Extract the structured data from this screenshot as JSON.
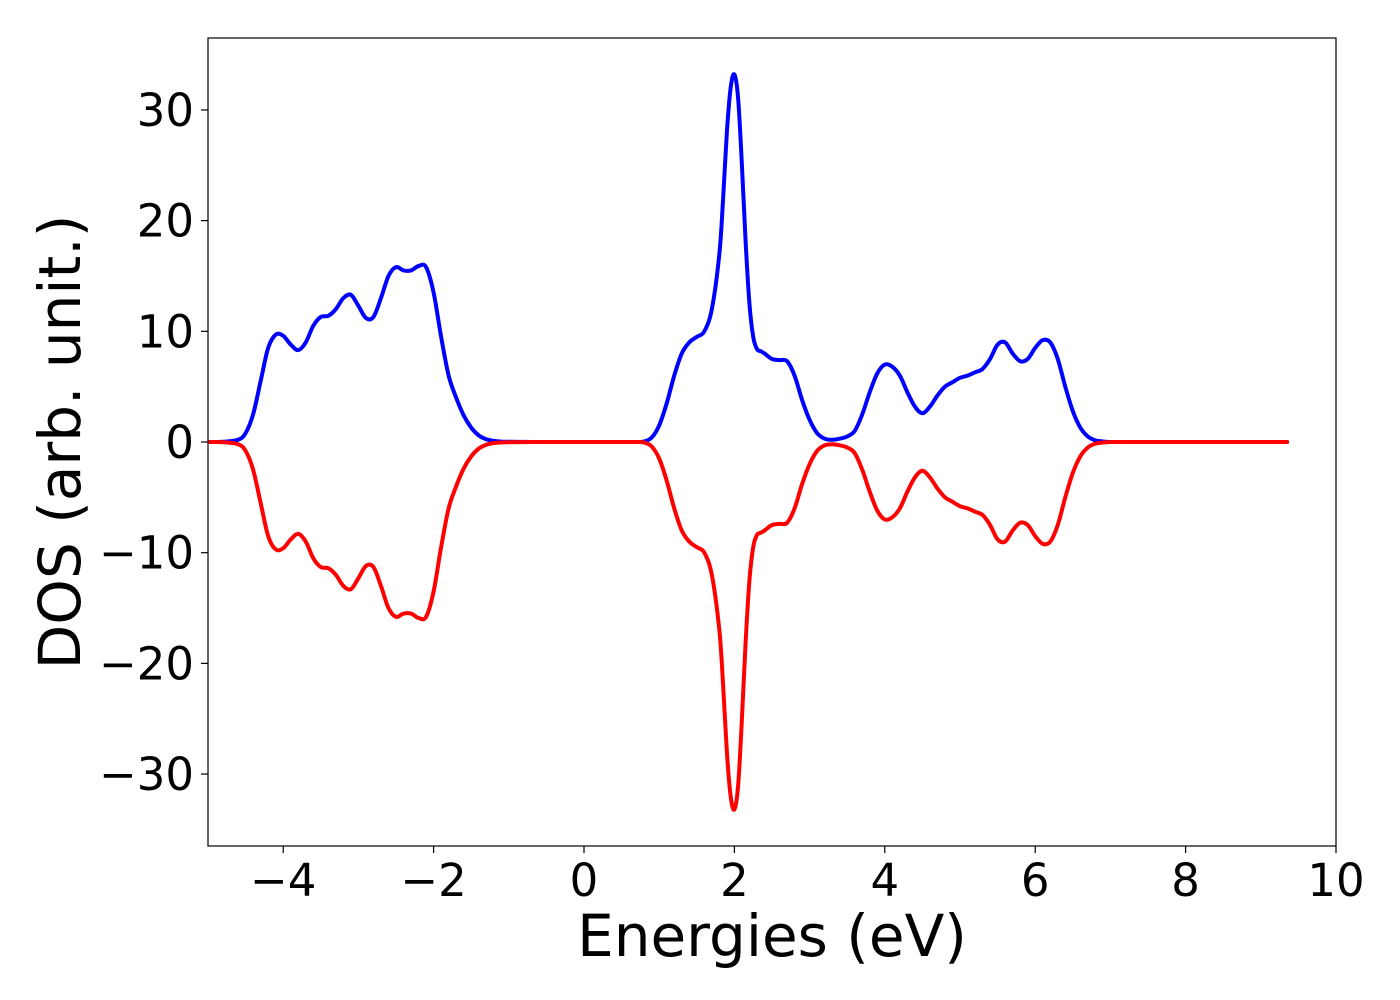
{
  "chart_data": {
    "type": "line",
    "title": "",
    "xlabel": "Energies (eV)",
    "ylabel": "DOS (arb. unit.)",
    "xlim": [
      -5.0,
      10.0
    ],
    "ylim": [
      -36.5,
      36.5
    ],
    "grid": false,
    "legend": "none",
    "x_ticks": [
      {
        "value": -4,
        "label": "−4"
      },
      {
        "value": -2,
        "label": "−2"
      },
      {
        "value": 0,
        "label": "0"
      },
      {
        "value": 2,
        "label": "2"
      },
      {
        "value": 4,
        "label": "4"
      },
      {
        "value": 6,
        "label": "6"
      },
      {
        "value": 8,
        "label": "8"
      },
      {
        "value": 10,
        "label": "10"
      }
    ],
    "y_ticks": [
      {
        "value": 30,
        "label": "30"
      },
      {
        "value": 20,
        "label": "20"
      },
      {
        "value": 10,
        "label": "10"
      },
      {
        "value": 0,
        "label": "0"
      },
      {
        "value": -10,
        "label": "−10"
      },
      {
        "value": -20,
        "label": "−20"
      },
      {
        "value": -30,
        "label": "−30"
      }
    ],
    "series": [
      {
        "color": "#0000ff",
        "x": [
          -5.0,
          -4.8,
          -4.6,
          -4.5,
          -4.4,
          -4.3,
          -4.2,
          -4.1,
          -4.0,
          -3.9,
          -3.8,
          -3.7,
          -3.6,
          -3.5,
          -3.4,
          -3.3,
          -3.2,
          -3.1,
          -3.0,
          -2.9,
          -2.8,
          -2.7,
          -2.6,
          -2.5,
          -2.4,
          -2.3,
          -2.2,
          -2.1,
          -2.0,
          -1.9,
          -1.8,
          -1.7,
          -1.6,
          -1.5,
          -1.4,
          -1.3,
          -1.2,
          -1.1,
          -1.0,
          -0.8,
          -0.6,
          -0.4,
          0.0,
          0.4,
          0.7,
          0.8,
          0.9,
          1.0,
          1.1,
          1.2,
          1.3,
          1.4,
          1.5,
          1.6,
          1.7,
          1.8,
          1.85,
          1.9,
          1.95,
          2.0,
          2.05,
          2.1,
          2.15,
          2.2,
          2.25,
          2.3,
          2.35,
          2.4,
          2.5,
          2.6,
          2.7,
          2.8,
          2.9,
          3.0,
          3.1,
          3.2,
          3.3,
          3.4,
          3.5,
          3.6,
          3.7,
          3.8,
          3.9,
          4.0,
          4.1,
          4.2,
          4.3,
          4.4,
          4.5,
          4.6,
          4.7,
          4.8,
          4.9,
          5.0,
          5.1,
          5.2,
          5.3,
          5.4,
          5.5,
          5.6,
          5.7,
          5.8,
          5.9,
          6.0,
          6.1,
          6.2,
          6.3,
          6.4,
          6.5,
          6.6,
          6.7,
          6.8,
          6.9,
          7.0,
          7.1,
          7.2,
          7.4,
          8.0,
          9.0,
          9.35
        ],
        "y": [
          0.0,
          0.02,
          0.2,
          0.8,
          2.5,
          5.5,
          8.5,
          9.7,
          9.6,
          8.8,
          8.3,
          9.0,
          10.5,
          11.3,
          11.4,
          12.0,
          13.0,
          13.3,
          12.3,
          11.2,
          11.3,
          13.0,
          15.0,
          15.8,
          15.5,
          15.5,
          15.9,
          15.8,
          13.5,
          9.5,
          6.0,
          4.0,
          2.4,
          1.3,
          0.6,
          0.25,
          0.1,
          0.04,
          0.02,
          0.01,
          0.0,
          0.0,
          0.0,
          0.0,
          0.0,
          0.05,
          0.4,
          1.5,
          3.5,
          6.0,
          8.0,
          9.0,
          9.5,
          10.0,
          12.0,
          17.0,
          22.0,
          28.0,
          32.0,
          33.2,
          31.0,
          25.0,
          18.0,
          12.5,
          9.5,
          8.4,
          8.2,
          8.0,
          7.5,
          7.4,
          7.3,
          6.0,
          3.8,
          2.0,
          0.8,
          0.3,
          0.2,
          0.3,
          0.5,
          1.0,
          2.5,
          4.5,
          6.2,
          7.0,
          6.8,
          6.0,
          4.5,
          3.2,
          2.6,
          3.2,
          4.2,
          5.0,
          5.4,
          5.8,
          6.0,
          6.3,
          6.6,
          7.5,
          8.8,
          9.0,
          8.0,
          7.3,
          7.5,
          8.5,
          9.2,
          9.0,
          7.5,
          5.0,
          2.8,
          1.3,
          0.5,
          0.15,
          0.05,
          0.0,
          0.0,
          0.0,
          0.0,
          0.0,
          0.0,
          0.0
        ]
      },
      {
        "color": "#ff0000",
        "x": [
          -5.0,
          -4.8,
          -4.6,
          -4.5,
          -4.4,
          -4.3,
          -4.2,
          -4.1,
          -4.0,
          -3.9,
          -3.8,
          -3.7,
          -3.6,
          -3.5,
          -3.4,
          -3.3,
          -3.2,
          -3.1,
          -3.0,
          -2.9,
          -2.8,
          -2.7,
          -2.6,
          -2.5,
          -2.4,
          -2.3,
          -2.2,
          -2.1,
          -2.0,
          -1.9,
          -1.8,
          -1.7,
          -1.6,
          -1.5,
          -1.4,
          -1.3,
          -1.2,
          -1.1,
          -1.0,
          -0.8,
          -0.6,
          -0.4,
          0.0,
          0.4,
          0.7,
          0.8,
          0.9,
          1.0,
          1.1,
          1.2,
          1.3,
          1.4,
          1.5,
          1.6,
          1.7,
          1.8,
          1.85,
          1.9,
          1.95,
          2.0,
          2.05,
          2.1,
          2.15,
          2.2,
          2.25,
          2.3,
          2.35,
          2.4,
          2.5,
          2.6,
          2.7,
          2.8,
          2.9,
          3.0,
          3.1,
          3.2,
          3.3,
          3.4,
          3.5,
          3.6,
          3.7,
          3.8,
          3.9,
          4.0,
          4.1,
          4.2,
          4.3,
          4.4,
          4.5,
          4.6,
          4.7,
          4.8,
          4.9,
          5.0,
          5.1,
          5.2,
          5.3,
          5.4,
          5.5,
          5.6,
          5.7,
          5.8,
          5.9,
          6.0,
          6.1,
          6.2,
          6.3,
          6.4,
          6.5,
          6.6,
          6.7,
          6.8,
          6.9,
          7.0,
          7.1,
          7.2,
          7.4,
          8.0,
          9.0,
          9.35
        ],
        "y": [
          0.0,
          -0.02,
          -0.2,
          -0.8,
          -2.5,
          -5.5,
          -8.5,
          -9.7,
          -9.6,
          -8.8,
          -8.3,
          -9.0,
          -10.5,
          -11.3,
          -11.4,
          -12.0,
          -13.0,
          -13.3,
          -12.3,
          -11.2,
          -11.3,
          -13.0,
          -15.0,
          -15.8,
          -15.5,
          -15.5,
          -15.9,
          -15.8,
          -13.5,
          -9.5,
          -6.0,
          -4.0,
          -2.4,
          -1.3,
          -0.6,
          -0.25,
          -0.1,
          -0.04,
          -0.02,
          -0.01,
          0.0,
          0.0,
          0.0,
          0.0,
          0.0,
          -0.05,
          -0.4,
          -1.5,
          -3.5,
          -6.0,
          -8.0,
          -9.0,
          -9.5,
          -10.0,
          -12.0,
          -17.0,
          -22.0,
          -28.0,
          -32.0,
          -33.2,
          -31.0,
          -25.0,
          -18.0,
          -12.5,
          -9.5,
          -8.4,
          -8.2,
          -8.0,
          -7.5,
          -7.4,
          -7.3,
          -6.0,
          -3.8,
          -2.0,
          -0.8,
          -0.3,
          -0.2,
          -0.3,
          -0.5,
          -1.0,
          -2.5,
          -4.5,
          -6.2,
          -7.0,
          -6.8,
          -6.0,
          -4.5,
          -3.2,
          -2.6,
          -3.2,
          -4.2,
          -5.0,
          -5.4,
          -5.8,
          -6.0,
          -6.3,
          -6.6,
          -7.5,
          -8.8,
          -9.0,
          -8.0,
          -7.3,
          -7.5,
          -8.5,
          -9.2,
          -9.0,
          -7.5,
          -5.0,
          -2.8,
          -1.3,
          -0.5,
          -0.15,
          -0.05,
          0.0,
          0.0,
          0.0,
          0.0,
          0.0,
          0.0,
          0.0
        ]
      }
    ]
  }
}
